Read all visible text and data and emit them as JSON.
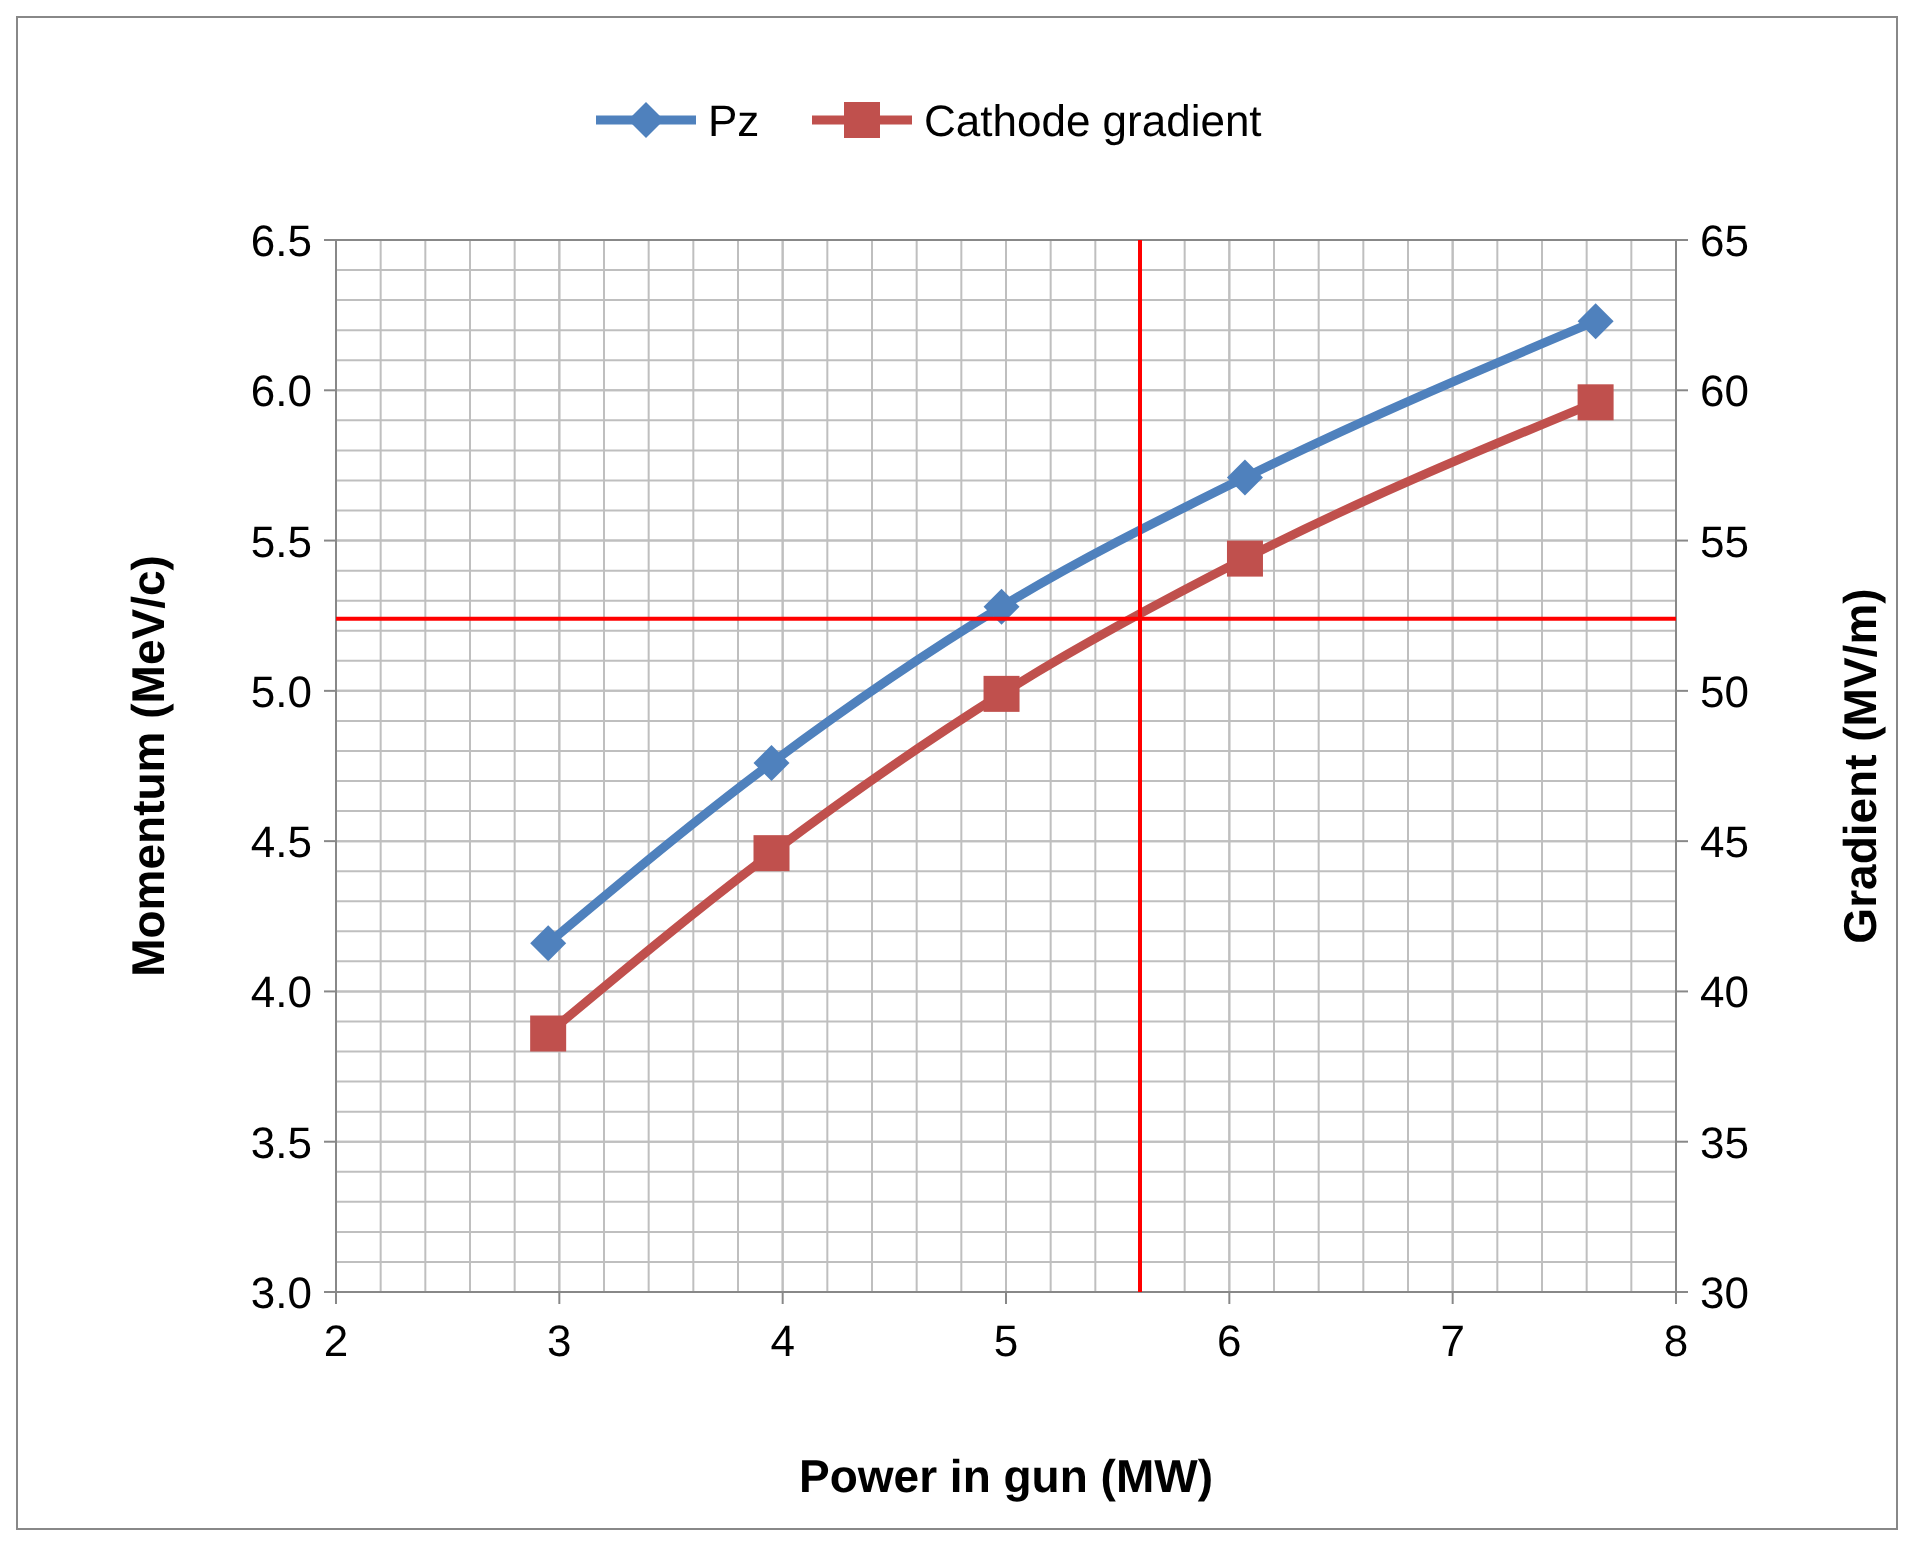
{
  "chart_data": {
    "type": "line",
    "xlabel": "Power in gun (MW)",
    "ylabel": "Momentum (MeV/c)",
    "y2label": "Gradient (MV/m)",
    "xlim": [
      2,
      8
    ],
    "xticks": [
      2,
      3,
      4,
      5,
      6,
      7,
      8
    ],
    "ylim": [
      3.0,
      6.5
    ],
    "yticks": [
      {
        "value": 3,
        "label": "3.0"
      },
      {
        "value": 3.5,
        "label": "3.5"
      },
      {
        "value": 4,
        "label": "4.0"
      },
      {
        "value": 4.5,
        "label": "4.5"
      },
      {
        "value": 5,
        "label": "5.0"
      },
      {
        "value": 5.5,
        "label": "5.5"
      },
      {
        "value": 6,
        "label": "6.0"
      },
      {
        "value": 6.5,
        "label": "6.5"
      }
    ],
    "y2lim": [
      30,
      65
    ],
    "y2ticks": [
      30,
      35,
      40,
      45,
      50,
      55,
      60,
      65
    ],
    "x": [
      2.95,
      3.95,
      4.98,
      6.07,
      7.64
    ],
    "series": [
      {
        "name": "Pz",
        "color": "#4f81bd",
        "values": [
          4.16,
          4.76,
          5.28,
          5.71,
          6.23
        ],
        "marker": "diamond"
      },
      {
        "name": "Cathode gradient",
        "color": "#c0504d",
        "values": [
          38.6,
          44.6,
          49.9,
          54.4,
          59.6
        ],
        "marker": "square",
        "axis": "y2"
      }
    ],
    "ref_lines": [
      {
        "axis": "x",
        "value": 5.6,
        "color": "#ff0000"
      },
      {
        "axis": "y2",
        "value": 52.4,
        "color": "#ff0000"
      }
    ],
    "grid": true,
    "legend": "top",
    "line_style": "solid"
  }
}
